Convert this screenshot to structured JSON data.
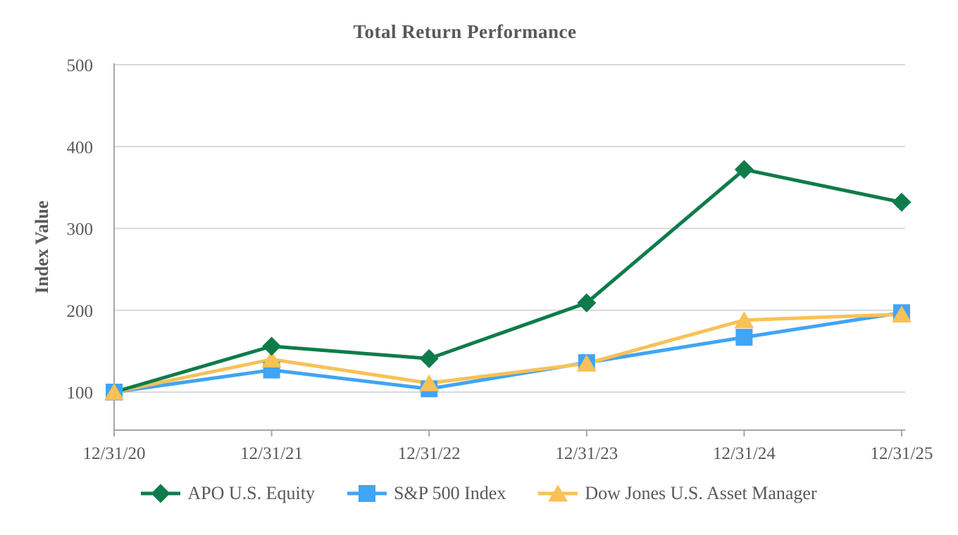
{
  "chart_data": {
    "type": "line",
    "title": "Total Return Performance",
    "xlabel": "",
    "ylabel": "Index Value",
    "categories": [
      "12/31/20",
      "12/31/21",
      "12/31/22",
      "12/31/23",
      "12/31/24",
      "12/31/25"
    ],
    "series": [
      {
        "name": "APO U.S. Equity",
        "marker": "diamond",
        "color": "#0E7C4A",
        "values": [
          100,
          156,
          141,
          209,
          372,
          332
        ]
      },
      {
        "name": "S&P 500 Index",
        "marker": "square",
        "color": "#41A4F5",
        "values": [
          100,
          127,
          104,
          136,
          167,
          197
        ]
      },
      {
        "name": "Dow Jones U.S. Asset Manager",
        "marker": "triangle",
        "color": "#F9C156",
        "values": [
          100,
          140,
          111,
          135,
          188,
          195
        ]
      }
    ],
    "y_axis": {
      "ticks": [
        100,
        200,
        300,
        400,
        500
      ],
      "label_min": 100,
      "label_max": 500,
      "tick_interval": 100
    },
    "grid": true,
    "legend_position": "bottom",
    "colors": {
      "gridline": "#D9D9D9",
      "axis_line": "#A6A6A6",
      "text": "#595959"
    }
  }
}
